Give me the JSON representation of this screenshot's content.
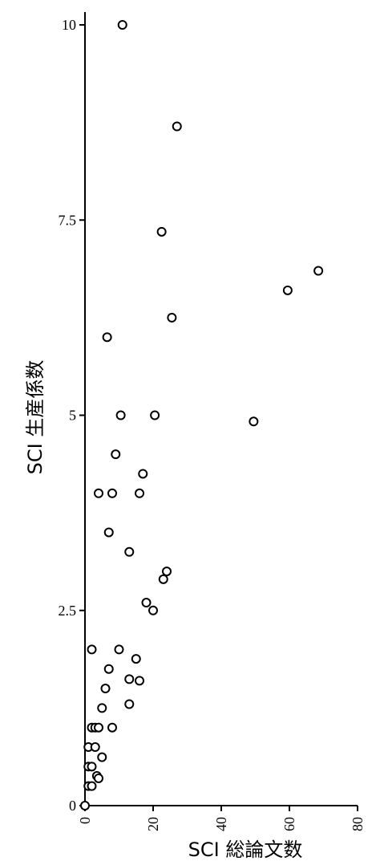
{
  "chart_data": {
    "type": "scatter",
    "title": "",
    "xlabel": "SCI 総論文数",
    "ylabel": "SCI 生産係数",
    "xlim": [
      0,
      80
    ],
    "ylim": [
      0,
      10
    ],
    "xticks": [
      "0",
      "20",
      "40",
      "60",
      "80"
    ],
    "yticks": [
      "0",
      "2.5",
      "5",
      "7.5",
      "10"
    ],
    "grid": false,
    "marker": "open-circle",
    "series": [
      {
        "points": [
          [
            11,
            10.0
          ],
          [
            27,
            8.7
          ],
          [
            22.5,
            7.35
          ],
          [
            68.5,
            6.85
          ],
          [
            59.5,
            6.6
          ],
          [
            25.5,
            6.25
          ],
          [
            6.5,
            6.0
          ],
          [
            10.5,
            5.0
          ],
          [
            20.5,
            5.0
          ],
          [
            49.5,
            4.92
          ],
          [
            9,
            4.5
          ],
          [
            17,
            4.25
          ],
          [
            4,
            4.0
          ],
          [
            8,
            4.0
          ],
          [
            16,
            4.0
          ],
          [
            7,
            3.5
          ],
          [
            13,
            3.25
          ],
          [
            24,
            3.0
          ],
          [
            23,
            2.9
          ],
          [
            18,
            2.6
          ],
          [
            20,
            2.5
          ],
          [
            2,
            2.0
          ],
          [
            10,
            2.0
          ],
          [
            15,
            1.88
          ],
          [
            7,
            1.75
          ],
          [
            13,
            1.62
          ],
          [
            16,
            1.6
          ],
          [
            6,
            1.5
          ],
          [
            13,
            1.3
          ],
          [
            5,
            1.25
          ],
          [
            2,
            1.0
          ],
          [
            3,
            1.0
          ],
          [
            4,
            1.0
          ],
          [
            8,
            1.0
          ],
          [
            1,
            0.75
          ],
          [
            3,
            0.75
          ],
          [
            5,
            0.62
          ],
          [
            1,
            0.5
          ],
          [
            2,
            0.5
          ],
          [
            3.5,
            0.38
          ],
          [
            4,
            0.35
          ],
          [
            1,
            0.25
          ],
          [
            2,
            0.25
          ],
          [
            0,
            0.0
          ]
        ]
      }
    ]
  }
}
